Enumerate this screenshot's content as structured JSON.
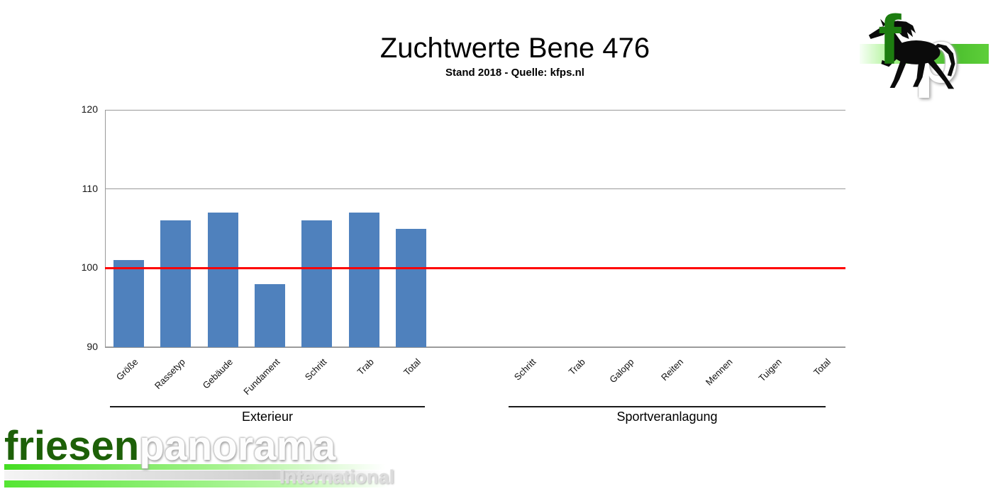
{
  "title": "Zuchtwerte Bene 476",
  "subtitle": "Stand 2018 - Quelle: kfps.nl",
  "chart_data": {
    "type": "bar",
    "title": "Zuchtwerte Bene 476",
    "subtitle": "Stand 2018 - Quelle: kfps.nl",
    "ylim": [
      90,
      120
    ],
    "yticks": [
      90,
      100,
      110,
      120
    ],
    "grid": "horizontal gridlines at y ticks",
    "legend": "none",
    "bar_color": "#4f81bd",
    "reference_line": {
      "value": 100,
      "color": "#ff0000"
    },
    "groups": [
      {
        "label": "Exterieur",
        "categories": [
          "Größe",
          "Rassetyp",
          "Gebäude",
          "Fundament",
          "Schritt",
          "Trab",
          "Total"
        ],
        "values": [
          101,
          106,
          107,
          98,
          106,
          107,
          105
        ]
      },
      {
        "label": "Sportveranlagung",
        "categories": [
          "Schritt",
          "Trab",
          "Galopp",
          "Reiten",
          "Mennen",
          "Tuigen",
          "Total"
        ],
        "values": [
          null,
          null,
          null,
          null,
          null,
          null,
          null
        ]
      }
    ]
  },
  "branding": {
    "monogram": {
      "f": "f",
      "p": "p"
    },
    "wordmark": {
      "part1": "friesen",
      "part2": "panorama",
      "tagline": "International"
    },
    "colors": {
      "dark_green": "#1d6008",
      "bright_green": "#55e533",
      "bar_blue": "#4f81bd",
      "reference_red": "#ff0000"
    }
  }
}
